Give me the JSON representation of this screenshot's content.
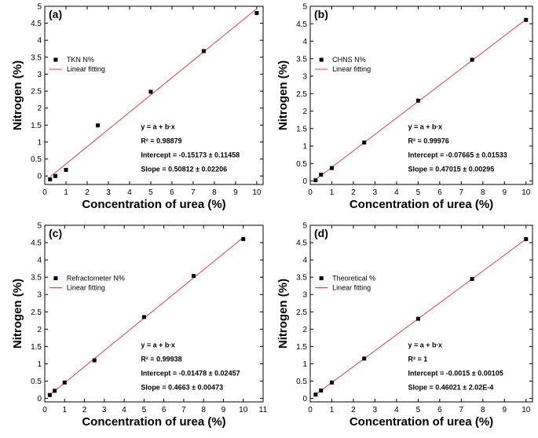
{
  "chart_data": [
    {
      "type": "scatter",
      "panel_label": "(a)",
      "xlabel": "Concentration of urea (%)",
      "ylabel": "Nitrogen (%)",
      "xlim": [
        0,
        10.3
      ],
      "ylim": [
        -0.25,
        5.0
      ],
      "xticks": [
        0,
        1,
        2,
        3,
        4,
        5,
        6,
        7,
        8,
        9,
        10
      ],
      "yticks": [
        0.0,
        0.5,
        1.0,
        1.5,
        2.0,
        2.5,
        3.0,
        3.5,
        4.0,
        4.5,
        5.0
      ],
      "grid": false,
      "legend_position": "upper-left",
      "series": [
        {
          "name": "TKN N%",
          "x": [
            0.25,
            0.5,
            1.0,
            2.5,
            5.0,
            7.5,
            10.0
          ],
          "y": [
            -0.1,
            0.0,
            0.18,
            1.49,
            2.48,
            3.68,
            4.8
          ]
        }
      ],
      "fit": {
        "name": "Linear fitting",
        "intercept": -0.15173,
        "slope": 0.50812,
        "x_range": [
          0.25,
          10.0
        ]
      },
      "stats": [
        "y = a + b∙x",
        "R² = 0.98879",
        "Intercept = -0.15173 ± 0.11458",
        "Slope = 0.50812 ± 0.02206"
      ]
    },
    {
      "type": "scatter",
      "panel_label": "(b)",
      "xlabel": "Concentration of urea (%)",
      "ylabel": "Nitrogen (%)",
      "xlim": [
        0,
        10.3
      ],
      "ylim": [
        -0.1,
        5.0
      ],
      "xticks": [
        0,
        1,
        2,
        3,
        4,
        5,
        6,
        7,
        8,
        9,
        10
      ],
      "yticks": [
        0.0,
        0.5,
        1.0,
        1.5,
        2.0,
        2.5,
        3.0,
        3.5,
        4.0,
        4.5,
        5.0
      ],
      "grid": false,
      "legend_position": "upper-left",
      "series": [
        {
          "name": "CHNS N%",
          "x": [
            0.25,
            0.5,
            1.0,
            2.5,
            5.0,
            7.5,
            10.0
          ],
          "y": [
            0.02,
            0.18,
            0.37,
            1.1,
            2.3,
            3.47,
            4.61
          ]
        }
      ],
      "fit": {
        "name": "Linear fitting",
        "intercept": -0.07665,
        "slope": 0.47015,
        "x_range": [
          0.25,
          10.0
        ]
      },
      "stats": [
        "y = a + b∙x",
        "R² = 0.99976",
        "Intercept = -0.07665 ± 0.01533",
        "Slope = 0.47015 ± 0.00295"
      ]
    },
    {
      "type": "scatter",
      "panel_label": "(c)",
      "xlabel": "Concentration of urea (%)",
      "ylabel": "Nitrogen (%)",
      "xlim": [
        0,
        11
      ],
      "ylim": [
        -0.1,
        5.0
      ],
      "xticks": [
        0,
        1,
        2,
        3,
        4,
        5,
        6,
        7,
        8,
        9,
        10,
        11
      ],
      "yticks": [
        0.0,
        0.5,
        1.0,
        1.5,
        2.0,
        2.5,
        3.0,
        3.5,
        4.0,
        4.5,
        5.0
      ],
      "grid": false,
      "legend_position": "upper-left",
      "series": [
        {
          "name": "Refractometer N%",
          "x": [
            0.25,
            0.5,
            1.0,
            2.5,
            5.0,
            7.5,
            10.0
          ],
          "y": [
            0.1,
            0.22,
            0.46,
            1.1,
            2.35,
            3.54,
            4.6
          ]
        }
      ],
      "fit": {
        "name": "Linear fitting",
        "intercept": -0.01478,
        "slope": 0.4663,
        "x_range": [
          0.25,
          10.0
        ]
      },
      "stats": [
        "y = a + b∙x",
        "R² = 0.99938",
        "Intercept = -0.01478 ± 0.02457",
        "Slope = 0.4663 ± 0.00473"
      ]
    },
    {
      "type": "scatter",
      "panel_label": "(d)",
      "xlabel": "Concentration of urea (%)",
      "ylabel": "Nitrogen (%)",
      "xlim": [
        0,
        10.3
      ],
      "ylim": [
        -0.1,
        5.0
      ],
      "xticks": [
        0,
        1,
        2,
        3,
        4,
        5,
        6,
        7,
        8,
        9,
        10
      ],
      "yticks": [
        0.0,
        0.5,
        1.0,
        1.5,
        2.0,
        2.5,
        3.0,
        3.5,
        4.0,
        4.5,
        5.0
      ],
      "grid": false,
      "legend_position": "upper-left",
      "series": [
        {
          "name": "Theoretical %",
          "x": [
            0.25,
            0.5,
            1.0,
            2.5,
            5.0,
            7.5,
            10.0
          ],
          "y": [
            0.11,
            0.23,
            0.46,
            1.15,
            2.3,
            3.45,
            4.6
          ]
        }
      ],
      "fit": {
        "name": "Linear fitting",
        "intercept": -0.0015,
        "slope": 0.46021,
        "x_range": [
          0.25,
          10.0
        ]
      },
      "stats": [
        "y = a + b∙x",
        "R² = 1",
        "Intercept = -0.0015 ± 0.00105",
        "Slope = 0.46021 ± 2.02E-4"
      ]
    }
  ],
  "colors": {
    "points": "#000000",
    "fit_line": "#e8413a",
    "axes": "#000000"
  }
}
